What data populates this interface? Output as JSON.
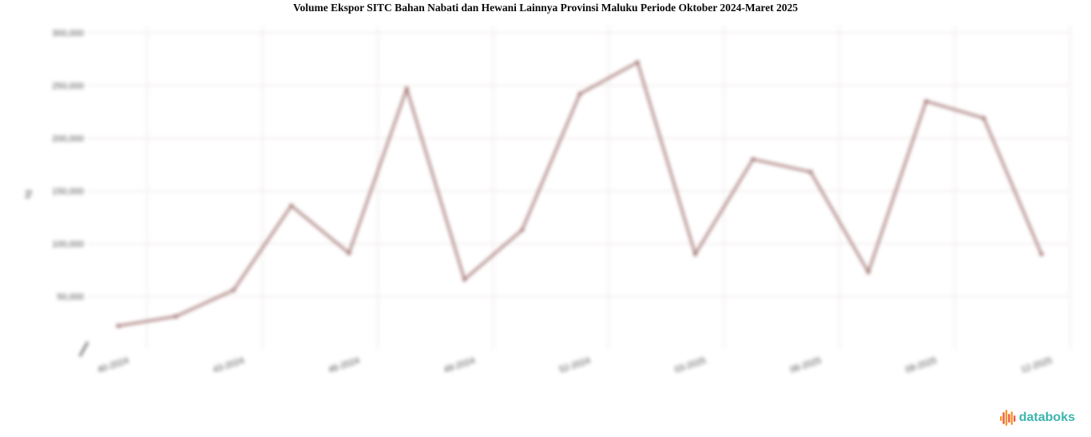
{
  "chart": {
    "title": "Volume Ekspor SITC Bahan Nabati dan Hewani Lainnya Provinsi Maluku Periode Oktober 2024-Maret 2025"
  },
  "chart_data": {
    "type": "line",
    "title": "Volume Ekspor SITC Bahan Nabati dan Hewani Lainnya Provinsi Maluku Periode Oktober 2024-Maret 2025",
    "xlabel": "",
    "ylabel": "kg",
    "ylim": [
      0,
      300000
    ],
    "grid": true,
    "legend_position": "none",
    "y_tick_labels": [
      "50,000",
      "100,000",
      "150,000",
      "200,000",
      "250,000",
      "300,000"
    ],
    "x_tick_labels": [
      "40-2024",
      "43-2024",
      "46-2024",
      "49-2024",
      "52-2024",
      "03-2025",
      "06-2025",
      "09-2025",
      "12-2025"
    ],
    "values": [
      22000,
      31000,
      56000,
      136000,
      91000,
      247000,
      66000,
      113000,
      242000,
      272000,
      90000,
      180000,
      168000,
      73000,
      235000,
      219000,
      90000
    ],
    "line_color": "#9e6f6c",
    "marker_color": "#9e6f6c",
    "grid_color": "#f0e8e8",
    "tick_text_color": "#4a4a4a"
  },
  "footer": {
    "logo_text": "databoks",
    "logo_text_color": "#3cb4ad",
    "logo_bar_colors": [
      "#f79722",
      "#ef5b41"
    ]
  }
}
